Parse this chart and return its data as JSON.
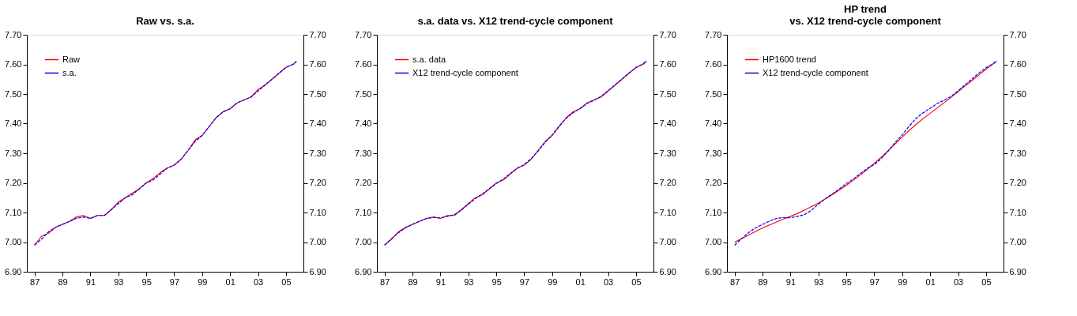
{
  "chart_data": [
    {
      "type": "line",
      "title": "Raw vs. s.a.",
      "legend": "top left",
      "grid": false,
      "x": [
        1987.0,
        1987.5,
        1988.0,
        1988.5,
        1989.0,
        1989.5,
        1990.0,
        1990.5,
        1991.0,
        1991.5,
        1992.0,
        1992.5,
        1993.0,
        1993.5,
        1994.0,
        1994.5,
        1995.0,
        1995.5,
        1996.0,
        1996.5,
        1997.0,
        1997.5,
        1998.0,
        1998.5,
        1999.0,
        1999.5,
        2000.0,
        2000.5,
        2001.0,
        2001.5,
        2002.0,
        2002.5,
        2003.0,
        2003.5,
        2004.0,
        2004.5,
        2005.0,
        2005.5,
        2005.75
      ],
      "xlim": [
        1986.45,
        2006.25
      ],
      "xticks": [
        {
          "value": 1987,
          "label": "87"
        },
        {
          "value": 1989,
          "label": "89"
        },
        {
          "value": 1991,
          "label": "91"
        },
        {
          "value": 1993,
          "label": "93"
        },
        {
          "value": 1995,
          "label": "95"
        },
        {
          "value": 1997,
          "label": "97"
        },
        {
          "value": 1999,
          "label": "99"
        },
        {
          "value": 2001,
          "label": "01"
        },
        {
          "value": 2003,
          "label": "03"
        },
        {
          "value": 2005,
          "label": "05"
        }
      ],
      "ylim": [
        6.9,
        7.7
      ],
      "yticks": [
        {
          "value": 6.9,
          "label": "6.90"
        },
        {
          "value": 7.0,
          "label": "7.00"
        },
        {
          "value": 7.1,
          "label": "7.10"
        },
        {
          "value": 7.2,
          "label": "7.20"
        },
        {
          "value": 7.3,
          "label": "7.30"
        },
        {
          "value": 7.4,
          "label": "7.40"
        },
        {
          "value": 7.5,
          "label": "7.50"
        },
        {
          "value": 7.6,
          "label": "7.60"
        },
        {
          "value": 7.7,
          "label": "7.70"
        }
      ],
      "y2lim": [
        6.9,
        7.7
      ],
      "y2ticks": [
        {
          "value": 6.9,
          "label": "6.90"
        },
        {
          "value": 7.0,
          "label": "7.00"
        },
        {
          "value": 7.1,
          "label": "7.10"
        },
        {
          "value": 7.2,
          "label": "7.20"
        },
        {
          "value": 7.3,
          "label": "7.30"
        },
        {
          "value": 7.4,
          "label": "7.40"
        },
        {
          "value": 7.5,
          "label": "7.50"
        },
        {
          "value": 7.6,
          "label": "7.60"
        },
        {
          "value": 7.7,
          "label": "7.70"
        }
      ],
      "series": [
        {
          "name": "Raw",
          "color": "#ff0000",
          "line_style": "solid",
          "values": [
            6.99,
            7.02,
            7.03,
            7.05,
            7.06,
            7.07,
            7.085,
            7.09,
            7.08,
            7.09,
            7.09,
            7.11,
            7.135,
            7.15,
            7.165,
            7.18,
            7.2,
            7.215,
            7.235,
            7.25,
            7.26,
            7.28,
            7.31,
            7.345,
            7.36,
            7.39,
            7.42,
            7.44,
            7.45,
            7.47,
            7.48,
            7.49,
            7.515,
            7.53,
            7.55,
            7.57,
            7.59,
            7.6,
            7.61
          ]
        },
        {
          "name": "s.a.",
          "color": "#0000ff",
          "line_style": "dashed",
          "values": [
            6.99,
            7.01,
            7.035,
            7.05,
            7.06,
            7.07,
            7.08,
            7.085,
            7.08,
            7.09,
            7.09,
            7.11,
            7.13,
            7.15,
            7.16,
            7.18,
            7.2,
            7.21,
            7.23,
            7.25,
            7.26,
            7.28,
            7.31,
            7.34,
            7.36,
            7.39,
            7.42,
            7.44,
            7.45,
            7.47,
            7.48,
            7.49,
            7.51,
            7.53,
            7.55,
            7.57,
            7.59,
            7.6,
            7.61
          ]
        }
      ]
    },
    {
      "type": "line",
      "title": "s.a. data vs. X12 trend-cycle component",
      "legend": "top left",
      "grid": false,
      "x": [
        1987.0,
        1987.5,
        1988.0,
        1988.5,
        1989.0,
        1989.5,
        1990.0,
        1990.5,
        1991.0,
        1991.5,
        1992.0,
        1992.5,
        1993.0,
        1993.5,
        1994.0,
        1994.5,
        1995.0,
        1995.5,
        1996.0,
        1996.5,
        1997.0,
        1997.5,
        1998.0,
        1998.5,
        1999.0,
        1999.5,
        2000.0,
        2000.5,
        2001.0,
        2001.5,
        2002.0,
        2002.5,
        2003.0,
        2003.5,
        2004.0,
        2004.5,
        2005.0,
        2005.5,
        2005.75
      ],
      "xlim": [
        1986.45,
        2006.25
      ],
      "xticks": [
        {
          "value": 1987,
          "label": "87"
        },
        {
          "value": 1989,
          "label": "89"
        },
        {
          "value": 1991,
          "label": "91"
        },
        {
          "value": 1993,
          "label": "93"
        },
        {
          "value": 1995,
          "label": "95"
        },
        {
          "value": 1997,
          "label": "97"
        },
        {
          "value": 1999,
          "label": "99"
        },
        {
          "value": 2001,
          "label": "01"
        },
        {
          "value": 2003,
          "label": "03"
        },
        {
          "value": 2005,
          "label": "05"
        }
      ],
      "ylim": [
        6.9,
        7.7
      ],
      "yticks": [
        {
          "value": 6.9,
          "label": "6.90"
        },
        {
          "value": 7.0,
          "label": "7.00"
        },
        {
          "value": 7.1,
          "label": "7.10"
        },
        {
          "value": 7.2,
          "label": "7.20"
        },
        {
          "value": 7.3,
          "label": "7.30"
        },
        {
          "value": 7.4,
          "label": "7.40"
        },
        {
          "value": 7.5,
          "label": "7.50"
        },
        {
          "value": 7.6,
          "label": "7.60"
        },
        {
          "value": 7.7,
          "label": "7.70"
        }
      ],
      "y2lim": [
        6.9,
        7.7
      ],
      "y2ticks": [
        {
          "value": 6.9,
          "label": "6.90"
        },
        {
          "value": 7.0,
          "label": "7.00"
        },
        {
          "value": 7.1,
          "label": "7.10"
        },
        {
          "value": 7.2,
          "label": "7.20"
        },
        {
          "value": 7.3,
          "label": "7.30"
        },
        {
          "value": 7.4,
          "label": "7.40"
        },
        {
          "value": 7.5,
          "label": "7.50"
        },
        {
          "value": 7.6,
          "label": "7.60"
        },
        {
          "value": 7.7,
          "label": "7.70"
        }
      ],
      "series": [
        {
          "name": "s.a. data",
          "color": "#ff0000",
          "line_style": "solid",
          "values": [
            6.99,
            7.01,
            7.035,
            7.05,
            7.06,
            7.07,
            7.08,
            7.085,
            7.08,
            7.09,
            7.09,
            7.11,
            7.13,
            7.15,
            7.16,
            7.18,
            7.2,
            7.21,
            7.23,
            7.25,
            7.26,
            7.28,
            7.31,
            7.34,
            7.36,
            7.39,
            7.42,
            7.44,
            7.45,
            7.47,
            7.48,
            7.49,
            7.51,
            7.53,
            7.55,
            7.57,
            7.59,
            7.6,
            7.61
          ]
        },
        {
          "name": "X12 trend-cycle component",
          "color": "#0000ff",
          "line_style": "dashed",
          "values": [
            6.99,
            7.012,
            7.032,
            7.048,
            7.06,
            7.071,
            7.08,
            7.083,
            7.082,
            7.087,
            7.093,
            7.108,
            7.128,
            7.147,
            7.163,
            7.18,
            7.198,
            7.213,
            7.232,
            7.249,
            7.262,
            7.282,
            7.308,
            7.337,
            7.362,
            7.392,
            7.418,
            7.437,
            7.452,
            7.468,
            7.479,
            7.492,
            7.511,
            7.531,
            7.551,
            7.571,
            7.589,
            7.602,
            7.612
          ]
        }
      ]
    },
    {
      "type": "line",
      "title": "HP trend\nvs. X12 trend-cycle component",
      "legend": "top left",
      "grid": false,
      "x": [
        1987.0,
        1987.5,
        1988.0,
        1988.5,
        1989.0,
        1989.5,
        1990.0,
        1990.5,
        1991.0,
        1991.5,
        1992.0,
        1992.5,
        1993.0,
        1993.5,
        1994.0,
        1994.5,
        1995.0,
        1995.5,
        1996.0,
        1996.5,
        1997.0,
        1997.5,
        1998.0,
        1998.5,
        1999.0,
        1999.5,
        2000.0,
        2000.5,
        2001.0,
        2001.5,
        2002.0,
        2002.5,
        2003.0,
        2003.5,
        2004.0,
        2004.5,
        2005.0,
        2005.5,
        2005.75
      ],
      "xlim": [
        1986.45,
        2006.25
      ],
      "xticks": [
        {
          "value": 1987,
          "label": "87"
        },
        {
          "value": 1989,
          "label": "89"
        },
        {
          "value": 1991,
          "label": "91"
        },
        {
          "value": 1993,
          "label": "93"
        },
        {
          "value": 1995,
          "label": "95"
        },
        {
          "value": 1997,
          "label": "97"
        },
        {
          "value": 1999,
          "label": "99"
        },
        {
          "value": 2001,
          "label": "01"
        },
        {
          "value": 2003,
          "label": "03"
        },
        {
          "value": 2005,
          "label": "05"
        }
      ],
      "ylim": [
        6.9,
        7.7
      ],
      "yticks": [
        {
          "value": 6.9,
          "label": "6.90"
        },
        {
          "value": 7.0,
          "label": "7.00"
        },
        {
          "value": 7.1,
          "label": "7.10"
        },
        {
          "value": 7.2,
          "label": "7.20"
        },
        {
          "value": 7.3,
          "label": "7.30"
        },
        {
          "value": 7.4,
          "label": "7.40"
        },
        {
          "value": 7.5,
          "label": "7.50"
        },
        {
          "value": 7.6,
          "label": "7.60"
        },
        {
          "value": 7.7,
          "label": "7.70"
        }
      ],
      "y2lim": [
        6.9,
        7.7
      ],
      "y2ticks": [
        {
          "value": 6.9,
          "label": "6.90"
        },
        {
          "value": 7.0,
          "label": "7.00"
        },
        {
          "value": 7.1,
          "label": "7.10"
        },
        {
          "value": 7.2,
          "label": "7.20"
        },
        {
          "value": 7.3,
          "label": "7.30"
        },
        {
          "value": 7.4,
          "label": "7.40"
        },
        {
          "value": 7.5,
          "label": "7.50"
        },
        {
          "value": 7.6,
          "label": "7.60"
        },
        {
          "value": 7.7,
          "label": "7.70"
        }
      ],
      "series": [
        {
          "name": "HP1600 trend",
          "color": "#ff0000",
          "line_style": "solid",
          "values": [
            7.0,
            7.012,
            7.024,
            7.036,
            7.048,
            7.058,
            7.068,
            7.078,
            7.087,
            7.097,
            7.108,
            7.12,
            7.132,
            7.146,
            7.161,
            7.176,
            7.192,
            7.209,
            7.227,
            7.246,
            7.266,
            7.287,
            7.309,
            7.332,
            7.355,
            7.377,
            7.398,
            7.417,
            7.435,
            7.453,
            7.471,
            7.489,
            7.508,
            7.527,
            7.546,
            7.565,
            7.584,
            7.601,
            7.61
          ]
        },
        {
          "name": "X12 trend-cycle component",
          "color": "#0000ff",
          "line_style": "dashed",
          "values": [
            6.99,
            7.012,
            7.032,
            7.048,
            7.06,
            7.071,
            7.08,
            7.083,
            7.082,
            7.087,
            7.093,
            7.108,
            7.128,
            7.147,
            7.163,
            7.18,
            7.198,
            7.213,
            7.232,
            7.249,
            7.262,
            7.282,
            7.308,
            7.337,
            7.362,
            7.392,
            7.418,
            7.437,
            7.452,
            7.468,
            7.479,
            7.492,
            7.511,
            7.531,
            7.551,
            7.571,
            7.589,
            7.602,
            7.612
          ]
        }
      ]
    }
  ]
}
